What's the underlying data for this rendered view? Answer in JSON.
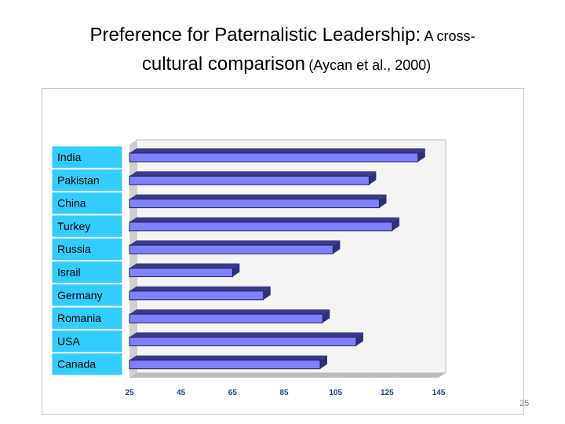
{
  "title": {
    "main": "Preference for Paternalistic Leadership:",
    "tail_1": "A cross-",
    "line2_main": "cultural comparison",
    "line2_cite": "(Aycan et al., 2000)"
  },
  "chart_data": {
    "type": "bar",
    "orientation": "horizontal",
    "categories": [
      "India",
      "Pakistan",
      "China",
      "Turkey",
      "Russia",
      "Israil",
      "Germany",
      "Romania",
      "USA",
      "Canada"
    ],
    "values": [
      137,
      118,
      122,
      127,
      104,
      65,
      77,
      100,
      113,
      99
    ],
    "xlim": [
      25,
      145
    ],
    "xticks": [
      25,
      45,
      65,
      85,
      105,
      125,
      145
    ],
    "grid": false,
    "legend": "none",
    "bar_style": "3d",
    "colors": {
      "bar_front": "#8080ff",
      "bar_top": "#3a3a8c",
      "bar_side": "#30307a",
      "label_bg": "#33ccff",
      "back_wall": "#cfcfcf",
      "floor": "#bdbdbd",
      "tick_text": "#1f3f7f"
    }
  },
  "page_number": "25"
}
